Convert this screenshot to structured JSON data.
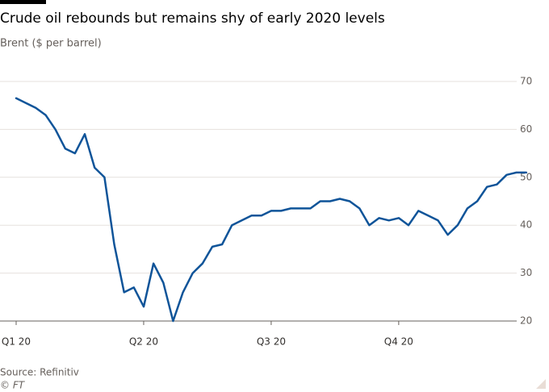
{
  "chart_data": {
    "type": "line",
    "title": "Crude oil rebounds but remains shy of early 2020 levels",
    "subtitle": "Brent ($ per barrel)",
    "source": "Source: Refinitiv",
    "credit": "© FT",
    "categories": [
      "Q1 20",
      null,
      null,
      null,
      null,
      null,
      null,
      null,
      null,
      null,
      null,
      null,
      null,
      "Q2 20",
      null,
      null,
      null,
      null,
      null,
      null,
      null,
      null,
      null,
      null,
      null,
      null,
      "Q3 20",
      null,
      null,
      null,
      null,
      null,
      null,
      null,
      null,
      null,
      null,
      null,
      null,
      "Q4 20",
      null,
      null,
      null,
      null,
      null,
      null,
      null,
      null,
      null,
      null,
      null,
      null,
      null
    ],
    "series": [
      {
        "name": "Brent",
        "color": "#0f5499",
        "values": [
          66.5,
          65.5,
          64.5,
          63,
          60,
          56,
          55,
          59,
          52,
          50,
          36,
          26,
          27,
          23,
          32,
          28,
          20,
          26,
          30,
          32,
          35.5,
          36,
          40,
          41,
          42,
          42,
          43,
          43,
          43.5,
          43.5,
          43.5,
          45,
          45,
          45.5,
          45,
          43.5,
          40,
          41.5,
          41,
          41.5,
          40,
          43,
          42,
          41,
          38,
          40,
          43.5,
          45,
          48,
          48.5,
          50.5,
          51,
          51
        ]
      }
    ],
    "ylim": [
      20,
      70
    ],
    "yticks": [
      20,
      30,
      40,
      50,
      60,
      70
    ],
    "grid": true
  }
}
